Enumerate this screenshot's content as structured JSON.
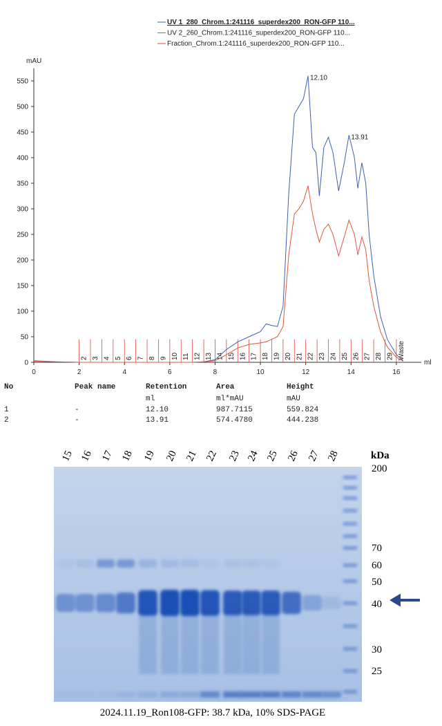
{
  "chart_data": {
    "type": "line",
    "ylabel": "mAU",
    "xlabel": "ml",
    "x": [
      0,
      1,
      2,
      3,
      4,
      5,
      6,
      7,
      7.5,
      8,
      8.5,
      9,
      9.5,
      10,
      10.25,
      10.5,
      10.75,
      11,
      11.25,
      11.5,
      11.7,
      11.9,
      12.1,
      12.3,
      12.45,
      12.6,
      12.8,
      13,
      13.2,
      13.45,
      13.7,
      13.91,
      14.15,
      14.3,
      14.48,
      14.65,
      14.8,
      15,
      15.3,
      15.6,
      16,
      16.3
    ],
    "series": [
      {
        "name": "UV 1_280_Chrom.1:241116_superdex200_RON-GFP 110...",
        "color": "#3f5fae",
        "values": [
          3,
          1,
          0,
          0,
          0,
          0,
          0,
          0,
          1,
          5,
          25,
          40,
          50,
          60,
          75,
          72,
          70,
          110,
          330,
          485,
          500,
          515,
          560,
          420,
          410,
          325,
          420,
          440,
          410,
          335,
          390,
          444,
          400,
          340,
          390,
          350,
          250,
          170,
          90,
          45,
          15,
          3
        ]
      },
      {
        "name": "UV 2_260_Chrom.1:241116_superdex200_RON-GFP 110...",
        "color": "#e0563c",
        "values": [
          2,
          1,
          0,
          0,
          0,
          0,
          0,
          0,
          1,
          3,
          15,
          28,
          35,
          38,
          40,
          45,
          50,
          70,
          210,
          290,
          300,
          315,
          345,
          290,
          260,
          235,
          260,
          270,
          250,
          208,
          245,
          278,
          250,
          210,
          245,
          220,
          160,
          110,
          60,
          30,
          10,
          2
        ]
      }
    ],
    "fractions": {
      "name": "Fraction_Chrom.1:241116_superdex200_RON-GFP 110...",
      "color": "#e0463c",
      "x": [
        2,
        2.5,
        3,
        3.5,
        4,
        4.5,
        5,
        5.5,
        6,
        6.5,
        7,
        7.5,
        8,
        8.5,
        9,
        9.5,
        10,
        10.5,
        11,
        11.5,
        12,
        12.5,
        13,
        13.5,
        14,
        14.5,
        15,
        15.5,
        16
      ],
      "labels": [
        "2",
        "3",
        "4",
        "5",
        "6",
        "7",
        "8",
        "9",
        "10",
        "11",
        "12",
        "13",
        "14",
        "15",
        "16",
        "17",
        "18",
        "19",
        "20",
        "21",
        "22",
        "23",
        "24",
        "25",
        "26",
        "27",
        "28",
        "29",
        "Waste"
      ]
    },
    "annotations": [
      {
        "text": "12.10",
        "x": 12.1,
        "y": 560
      },
      {
        "text": "13.91",
        "x": 13.91,
        "y": 444
      }
    ],
    "xlim": [
      0,
      17.1
    ],
    "ylim": [
      0,
      575
    ],
    "xticks": [
      0,
      2,
      4,
      6,
      8,
      10,
      12,
      14,
      16
    ],
    "yticks": [
      0,
      50,
      100,
      150,
      200,
      250,
      300,
      350,
      400,
      450,
      500,
      550
    ]
  },
  "table": {
    "headers": [
      "No",
      "Peak name",
      "Retention",
      "Area",
      "Height"
    ],
    "units": {
      "retention": "ml",
      "area": "ml*mAU",
      "height": "mAU"
    },
    "rows": [
      [
        "1",
        "-",
        "12.10",
        "987.7115",
        "559.824"
      ],
      [
        "2",
        "-",
        "13.91",
        "574.4780",
        "444.238"
      ]
    ]
  },
  "gel": {
    "lanes": [
      "15",
      "16",
      "17",
      "18",
      "19",
      "20",
      "21",
      "22",
      "23",
      "24",
      "25",
      "26",
      "27",
      "28"
    ],
    "unit": "kDa",
    "markers": [
      "200",
      "70",
      "60",
      "50",
      "40",
      "30",
      "25"
    ],
    "caption": "2024.11.19_Ron108-GFP: 38.7 kDa, 10% SDS-PAGE"
  }
}
